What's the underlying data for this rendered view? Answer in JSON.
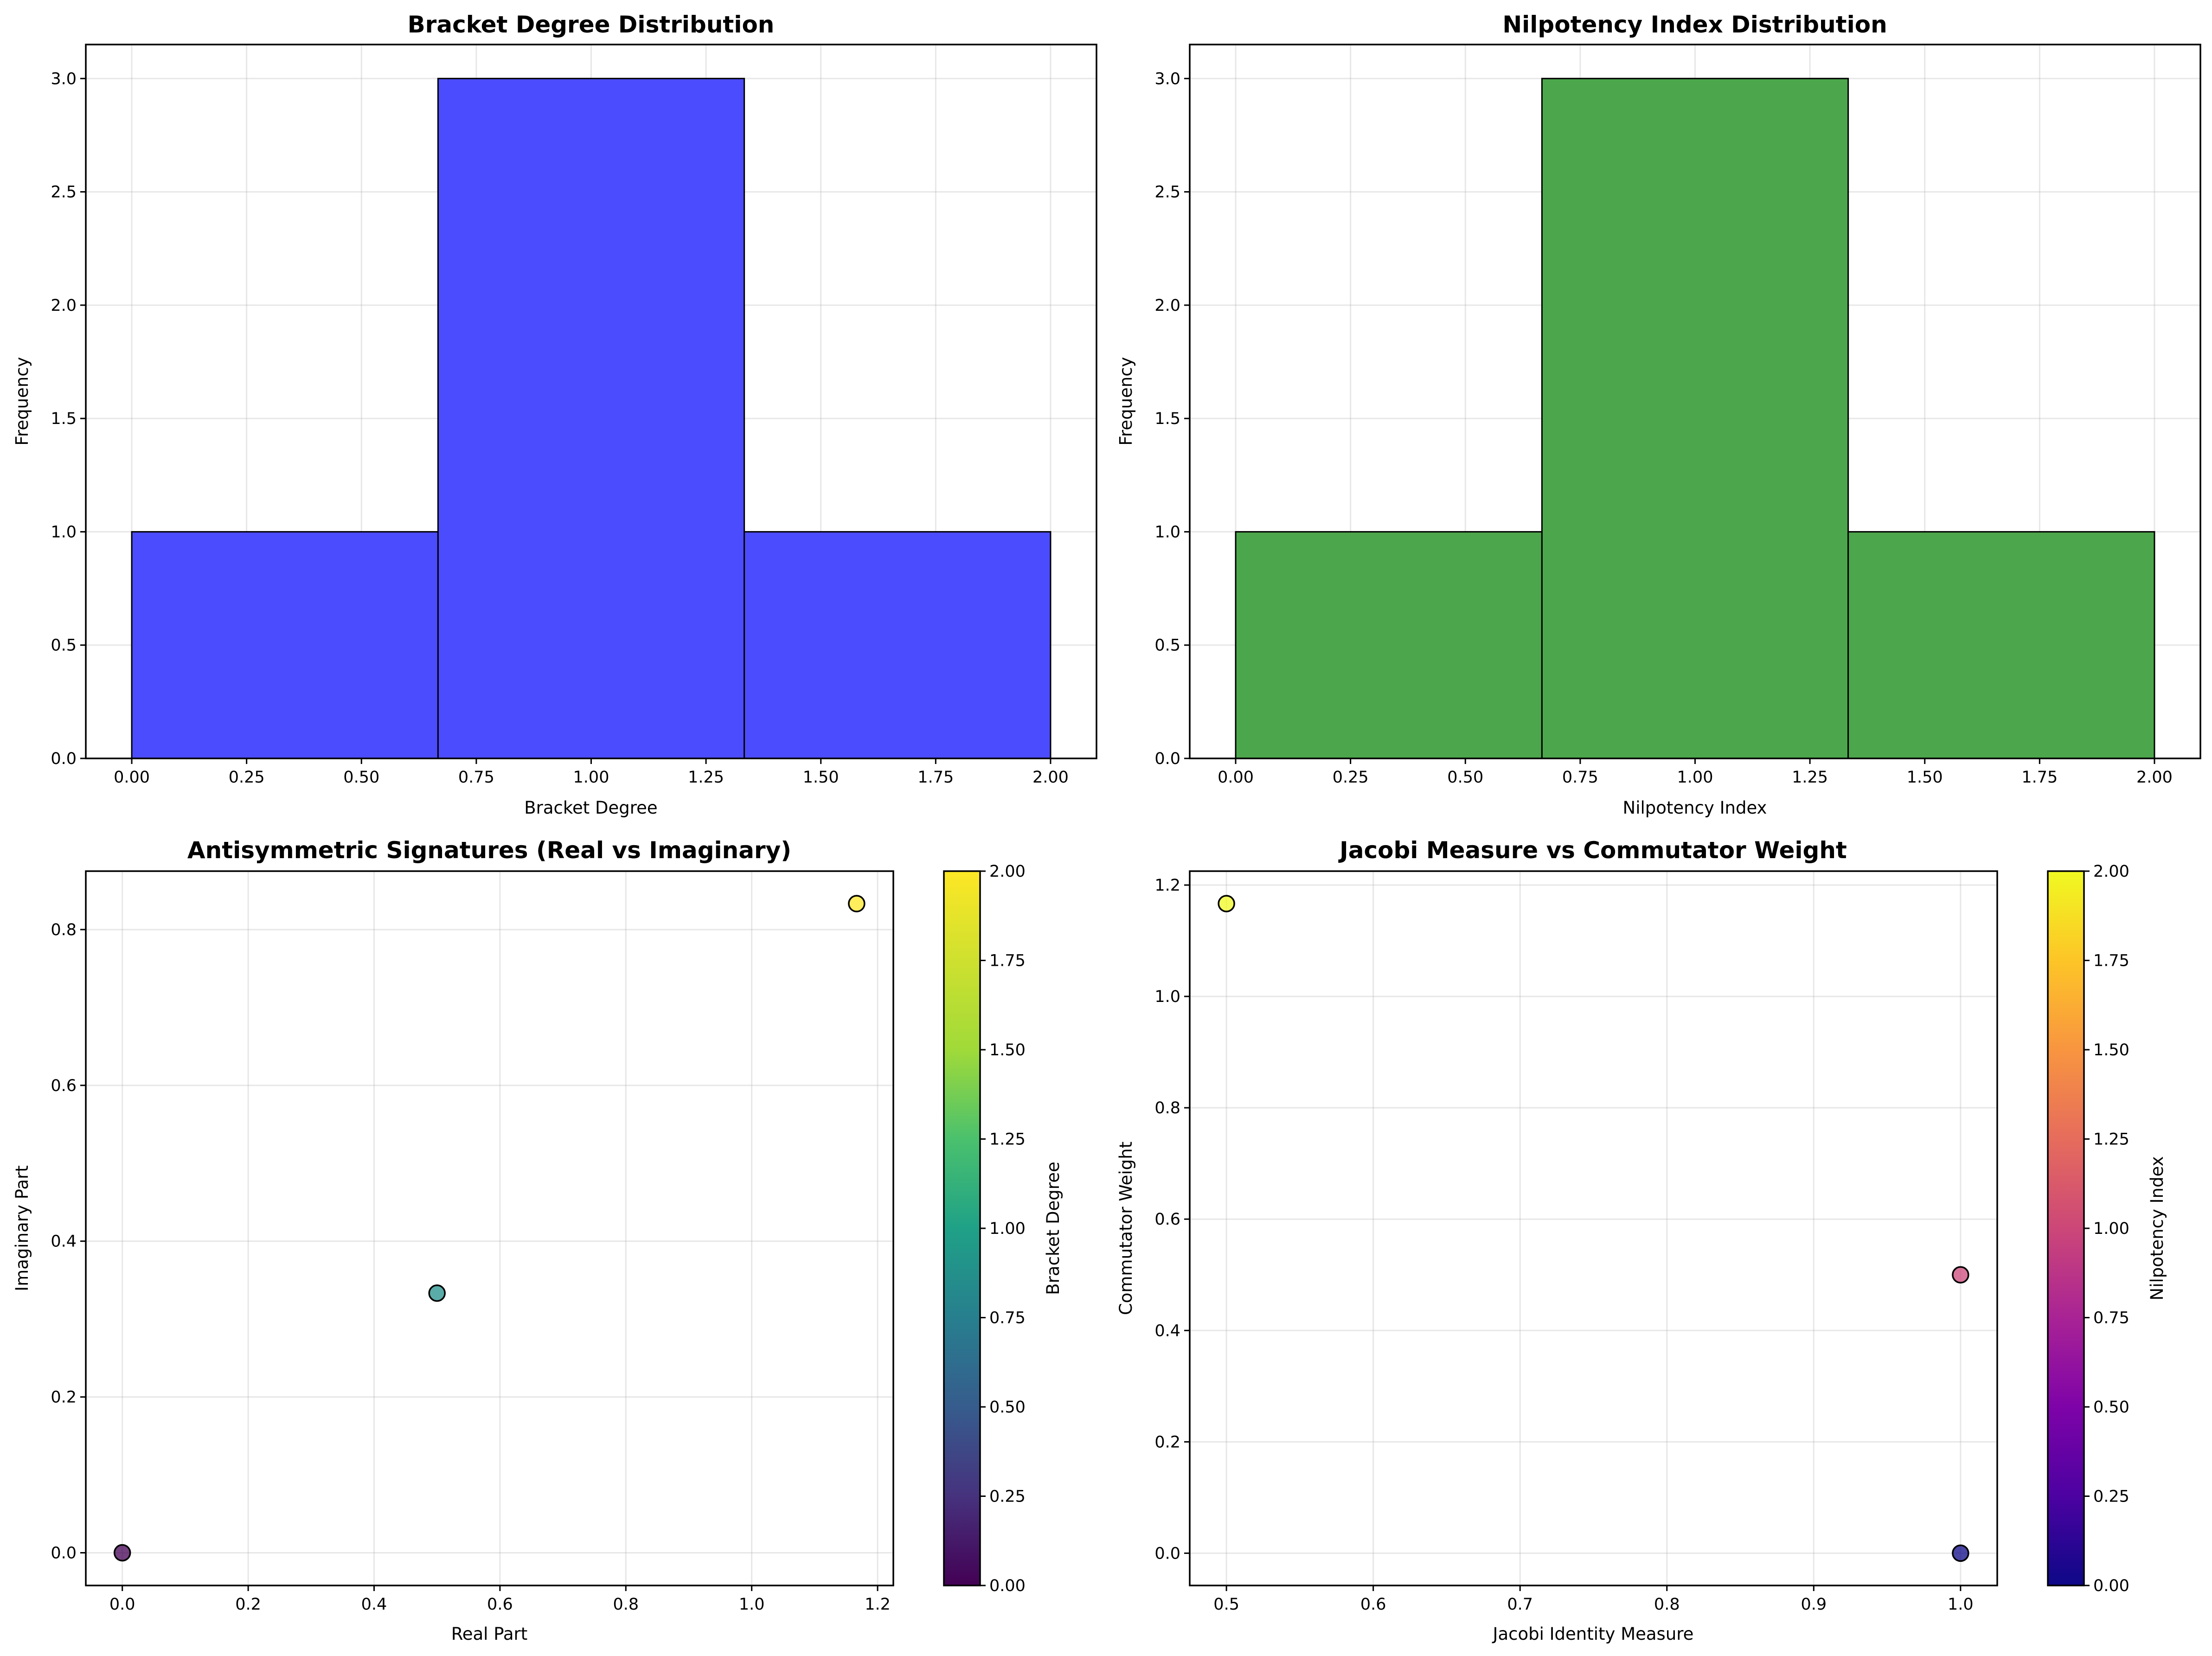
{
  "chart_data": [
    {
      "type": "bar",
      "title": "Bracket Degree Distribution",
      "xlabel": "Bracket Degree",
      "ylabel": "Frequency",
      "bins": [
        [
          0.0,
          0.6667
        ],
        [
          0.6667,
          1.3333
        ],
        [
          1.3333,
          2.0
        ]
      ],
      "values": [
        1,
        3,
        1
      ],
      "color": "#4c4cff",
      "xlim": [
        -0.1,
        2.1
      ],
      "ylim": [
        0,
        3.15
      ],
      "xticks": [
        0.0,
        0.25,
        0.5,
        0.75,
        1.0,
        1.25,
        1.5,
        1.75,
        2.0
      ],
      "xtick_labels": [
        "0.00",
        "0.25",
        "0.50",
        "0.75",
        "1.00",
        "1.25",
        "1.50",
        "1.75",
        "2.00"
      ],
      "yticks": [
        0.0,
        0.5,
        1.0,
        1.5,
        2.0,
        2.5,
        3.0
      ],
      "ytick_labels": [
        "0.0",
        "0.5",
        "1.0",
        "1.5",
        "2.0",
        "2.5",
        "3.0"
      ],
      "grid": true
    },
    {
      "type": "bar",
      "title": "Nilpotency Index Distribution",
      "xlabel": "Nilpotency Index",
      "ylabel": "Frequency",
      "bins": [
        [
          0.0,
          0.6667
        ],
        [
          0.6667,
          1.3333
        ],
        [
          1.3333,
          2.0
        ]
      ],
      "values": [
        1,
        3,
        1
      ],
      "color": "#4ca64c",
      "xlim": [
        -0.1,
        2.1
      ],
      "ylim": [
        0,
        3.15
      ],
      "xticks": [
        0.0,
        0.25,
        0.5,
        0.75,
        1.0,
        1.25,
        1.5,
        1.75,
        2.0
      ],
      "xtick_labels": [
        "0.00",
        "0.25",
        "0.50",
        "0.75",
        "1.00",
        "1.25",
        "1.50",
        "1.75",
        "2.00"
      ],
      "yticks": [
        0.0,
        0.5,
        1.0,
        1.5,
        2.0,
        2.5,
        3.0
      ],
      "ytick_labels": [
        "0.0",
        "0.5",
        "1.0",
        "1.5",
        "2.0",
        "2.5",
        "3.0"
      ],
      "grid": true
    },
    {
      "type": "scatter",
      "title": "Antisymmetric Signatures (Real vs Imaginary)",
      "xlabel": "Real Part",
      "ylabel": "Imaginary Part",
      "points": [
        {
          "x": 0.0,
          "y": 0.0,
          "c": 0
        },
        {
          "x": 0.5,
          "y": 0.3333,
          "c": 1
        },
        {
          "x": 1.1667,
          "y": 0.8333,
          "c": 2
        }
      ],
      "xlim": [
        -0.058,
        1.225
      ],
      "ylim": [
        -0.042,
        0.875
      ],
      "xticks": [
        0.0,
        0.2,
        0.4,
        0.6,
        0.8,
        1.0,
        1.2
      ],
      "xtick_labels": [
        "0.0",
        "0.2",
        "0.4",
        "0.6",
        "0.8",
        "1.0",
        "1.2"
      ],
      "yticks": [
        0.0,
        0.2,
        0.4,
        0.6,
        0.8
      ],
      "ytick_labels": [
        "0.0",
        "0.2",
        "0.4",
        "0.6",
        "0.8"
      ],
      "colormap": "viridis",
      "colorbar_label": "Bracket Degree",
      "colorbar_range": [
        0,
        2
      ],
      "colorbar_ticks": [
        0.0,
        0.25,
        0.5,
        0.75,
        1.0,
        1.25,
        1.5,
        1.75,
        2.0
      ],
      "colorbar_tick_labels": [
        "0.00",
        "0.25",
        "0.50",
        "0.75",
        "1.00",
        "1.25",
        "1.50",
        "1.75",
        "2.00"
      ],
      "grid": true
    },
    {
      "type": "scatter",
      "title": "Jacobi Measure vs Commutator Weight",
      "xlabel": "Jacobi Identity Measure",
      "ylabel": "Commutator Weight",
      "points": [
        {
          "x": 0.5,
          "y": 1.1667,
          "c": 2
        },
        {
          "x": 1.0,
          "y": 0.5,
          "c": 1
        },
        {
          "x": 1.0,
          "y": 0.0,
          "c": 0
        }
      ],
      "xlim": [
        0.475,
        1.025
      ],
      "ylim": [
        -0.058,
        1.225
      ],
      "xticks": [
        0.5,
        0.6,
        0.7,
        0.8,
        0.9,
        1.0
      ],
      "xtick_labels": [
        "0.5",
        "0.6",
        "0.7",
        "0.8",
        "0.9",
        "1.0"
      ],
      "yticks": [
        0.0,
        0.2,
        0.4,
        0.6,
        0.8,
        1.0,
        1.2
      ],
      "ytick_labels": [
        "0.0",
        "0.2",
        "0.4",
        "0.6",
        "0.8",
        "1.0",
        "1.2"
      ],
      "colormap": "plasma",
      "colorbar_label": "Nilpotency Index",
      "colorbar_range": [
        0,
        2
      ],
      "colorbar_ticks": [
        0.0,
        0.25,
        0.5,
        0.75,
        1.0,
        1.25,
        1.5,
        1.75,
        2.0
      ],
      "colorbar_tick_labels": [
        "0.00",
        "0.25",
        "0.50",
        "0.75",
        "1.00",
        "1.25",
        "1.50",
        "1.75",
        "2.00"
      ],
      "grid": true
    }
  ]
}
